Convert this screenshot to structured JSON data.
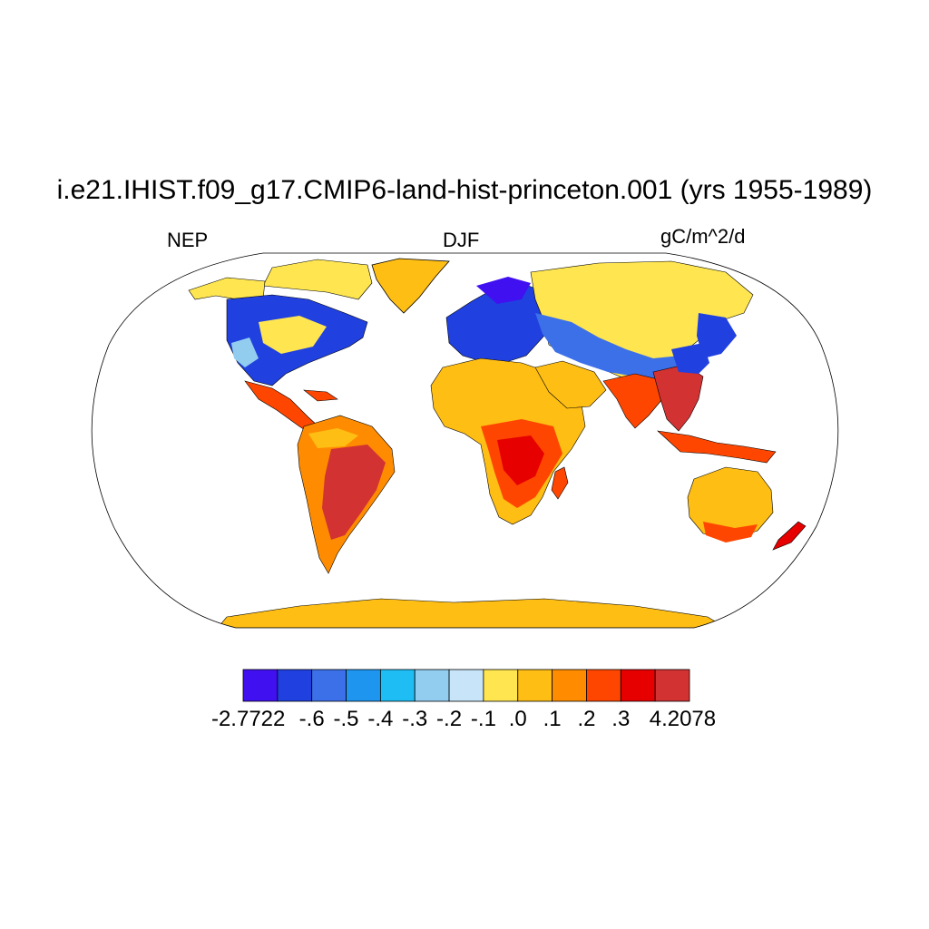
{
  "title": "i.e21.IHIST.f09_g17.CMIP6-land-hist-princeton.001 (yrs 1955-1989)",
  "variable": "NEP",
  "season": "DJF",
  "units": "gC/m^2/d",
  "colorbar": {
    "colors": [
      "#4010f0",
      "#2040e0",
      "#3c70e8",
      "#1e96f0",
      "#1ebef5",
      "#92cdf0",
      "#c8e4f8",
      "#ffe650",
      "#ffbe14",
      "#ff8c00",
      "#ff4600",
      "#e60000",
      "#d23232"
    ],
    "labels": [
      "-2.7722",
      "-.6",
      "-.5",
      "-.4",
      "-.3",
      "-.2",
      "-.1",
      ".0",
      ".1",
      ".2",
      ".3",
      "4.2078"
    ]
  }
}
